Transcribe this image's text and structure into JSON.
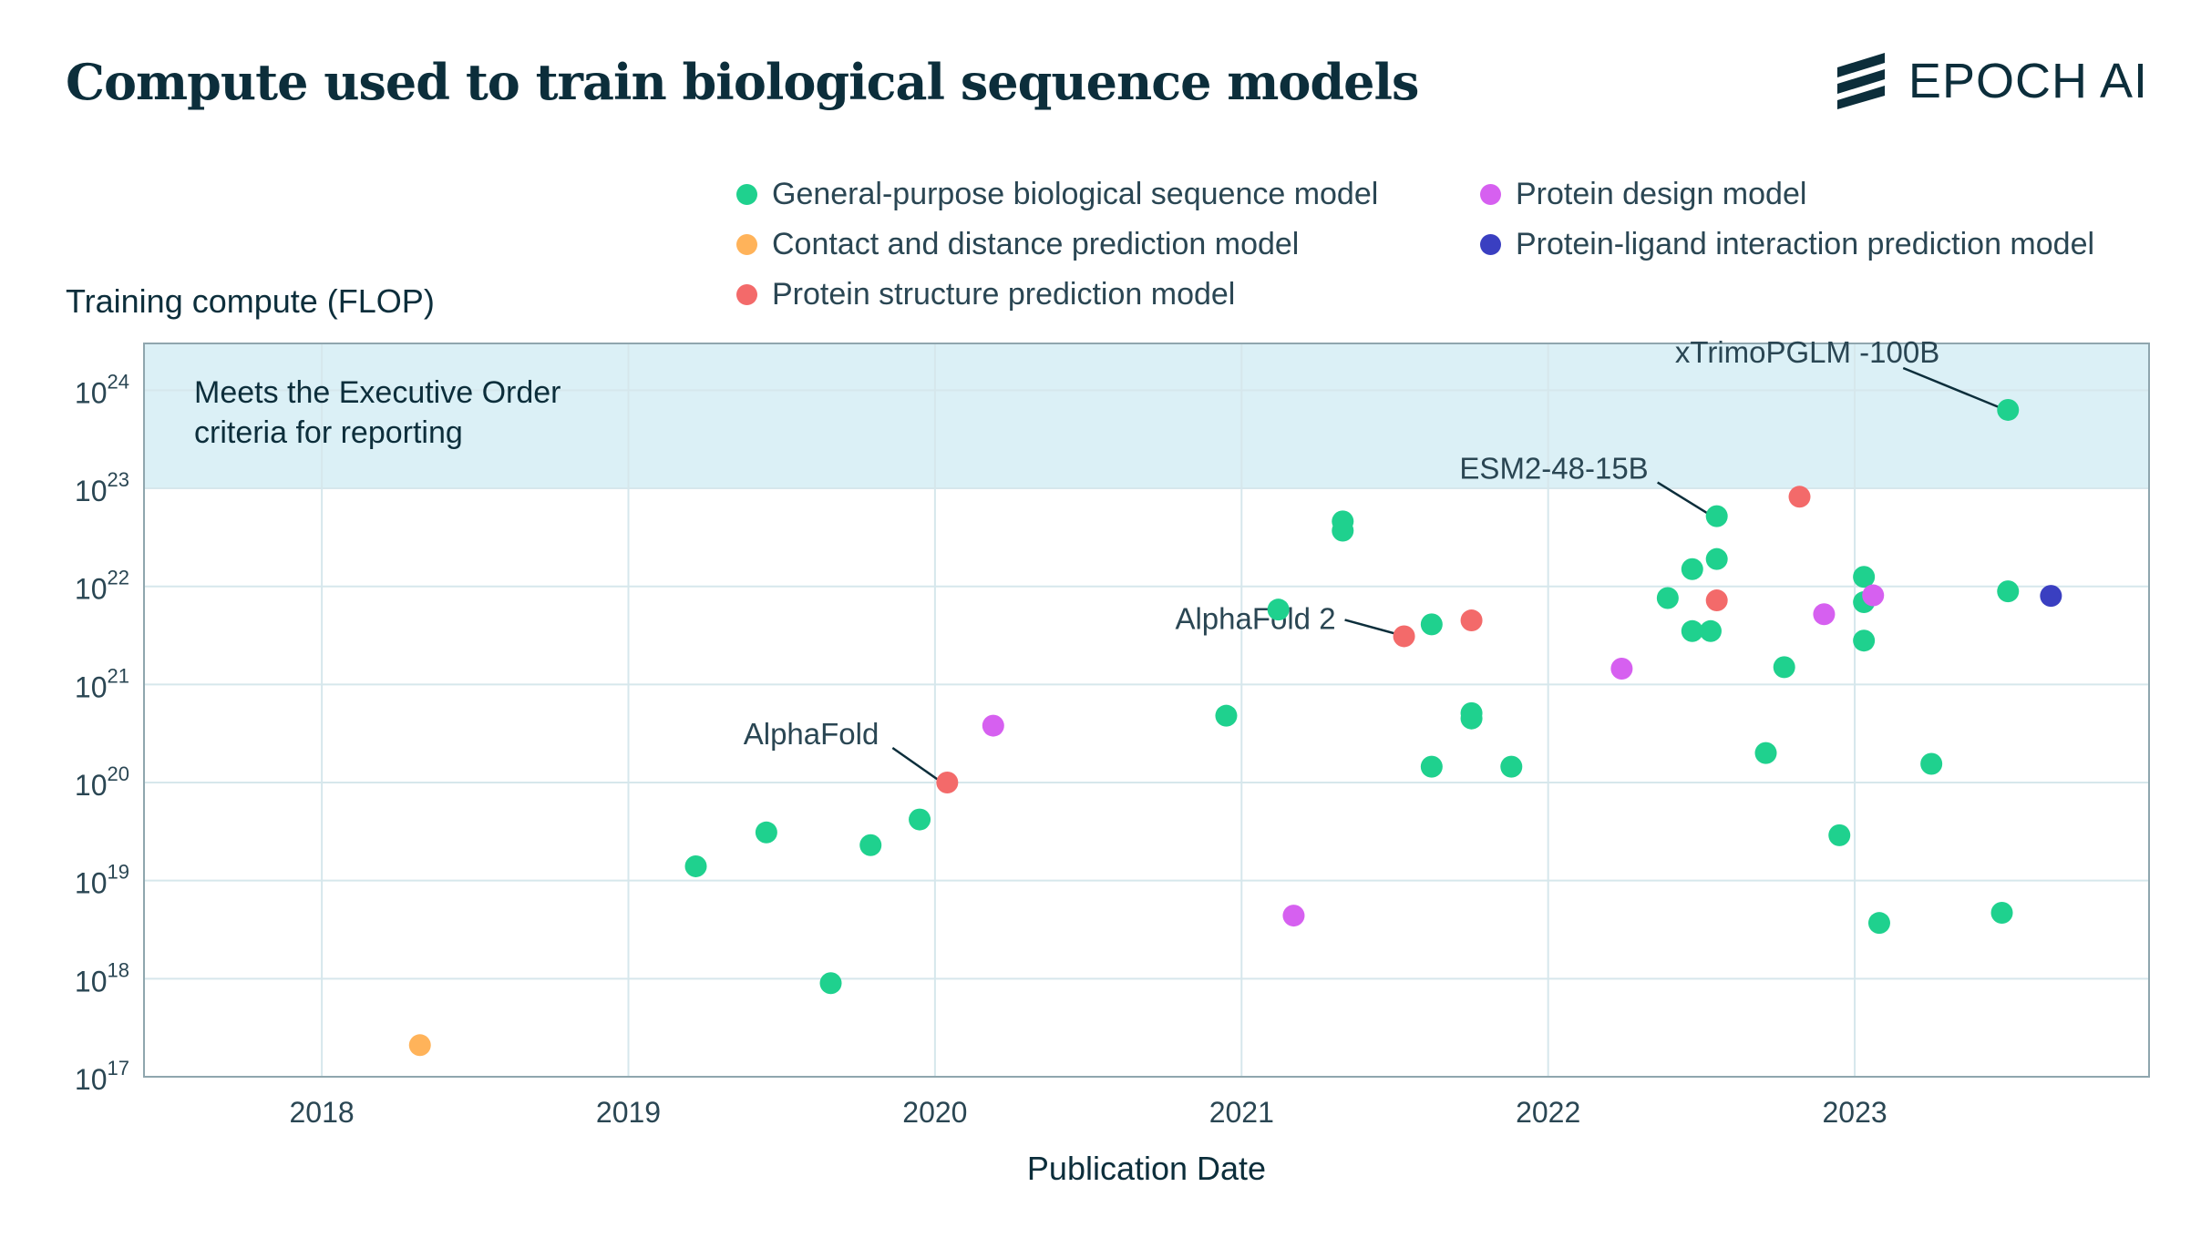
{
  "title": "Compute used to train biological sequence models",
  "brand": {
    "name": "EPOCH AI",
    "logo_icon": "epoch-stripes-icon"
  },
  "chart_data": {
    "type": "scatter",
    "xlabel": "Publication Date",
    "ylabel": "Training compute (FLOP)",
    "y_scale": "log",
    "xlim": [
      2017.42,
      2023.96
    ],
    "ylim": [
      1e+17,
      3e+24
    ],
    "x_ticks": [
      2018,
      2019,
      2020,
      2021,
      2022,
      2023
    ],
    "y_ticks": [
      {
        "value": 1e+17,
        "base": "10",
        "exp": "17"
      },
      {
        "value": 1e+18,
        "base": "10",
        "exp": "18"
      },
      {
        "value": 1e+19,
        "base": "10",
        "exp": "19"
      },
      {
        "value": 1e+20,
        "base": "10",
        "exp": "20"
      },
      {
        "value": 1e+21,
        "base": "10",
        "exp": "21"
      },
      {
        "value": 1e+22,
        "base": "10",
        "exp": "22"
      },
      {
        "value": 1e+23,
        "base": "10",
        "exp": "23"
      },
      {
        "value": 1e+24,
        "base": "10",
        "exp": "24"
      }
    ],
    "grid": true,
    "legend_position": "top",
    "threshold": {
      "value": 1e+23,
      "label_lines": [
        "Meets the Executive Order",
        "criteria for reporting"
      ],
      "color": "#dbf0f6"
    },
    "series": [
      {
        "name": "General-purpose biological sequence model",
        "color": "#1fd18e",
        "points": [
          {
            "x": 2019.22,
            "y": 1.4e+19
          },
          {
            "x": 2019.45,
            "y": 3.1e+19
          },
          {
            "x": 2019.66,
            "y": 9e+17
          },
          {
            "x": 2019.79,
            "y": 2.3e+19
          },
          {
            "x": 2019.95,
            "y": 4.2e+19
          },
          {
            "x": 2020.95,
            "y": 4.8e+20
          },
          {
            "x": 2021.12,
            "y": 5.8e+21
          },
          {
            "x": 2021.33,
            "y": 4.6e+22
          },
          {
            "x": 2021.33,
            "y": 3.7e+22
          },
          {
            "x": 2021.62,
            "y": 4.1e+21
          },
          {
            "x": 2021.62,
            "y": 1.45e+20
          },
          {
            "x": 2021.75,
            "y": 5.1e+20
          },
          {
            "x": 2021.75,
            "y": 4.5e+20
          },
          {
            "x": 2021.88,
            "y": 1.45e+20
          },
          {
            "x": 2022.39,
            "y": 7.6e+21
          },
          {
            "x": 2022.47,
            "y": 1.5e+22
          },
          {
            "x": 2022.47,
            "y": 3.5e+21
          },
          {
            "x": 2022.53,
            "y": 3.5e+21
          },
          {
            "x": 2022.55,
            "y": 1.9e+22
          },
          {
            "x": 2022.55,
            "y": 5.2e+22
          },
          {
            "x": 2022.71,
            "y": 2e+20
          },
          {
            "x": 2022.77,
            "y": 1.5e+21
          },
          {
            "x": 2022.95,
            "y": 2.9e+19
          },
          {
            "x": 2023.03,
            "y": 1.25e+22
          },
          {
            "x": 2023.03,
            "y": 6.9e+21
          },
          {
            "x": 2023.03,
            "y": 2.8e+21
          },
          {
            "x": 2023.08,
            "y": 3.7e+18
          },
          {
            "x": 2023.25,
            "y": 1.55e+20
          },
          {
            "x": 2023.48,
            "y": 4.7e+18
          },
          {
            "x": 2023.5,
            "y": 8.9e+21
          },
          {
            "x": 2023.5,
            "y": 6.3e+23
          }
        ]
      },
      {
        "name": "Contact and distance prediction model",
        "color": "#ffb35a",
        "points": [
          {
            "x": 2018.32,
            "y": 2.1e+17
          }
        ]
      },
      {
        "name": "Protein structure prediction model",
        "color": "#f36a6a",
        "points": [
          {
            "x": 2020.04,
            "y": 1e+20
          },
          {
            "x": 2021.53,
            "y": 3.1e+21
          },
          {
            "x": 2021.75,
            "y": 4.5e+21
          },
          {
            "x": 2022.55,
            "y": 7.2e+21
          },
          {
            "x": 2022.82,
            "y": 8.2e+22
          }
        ]
      },
      {
        "name": "Protein design model",
        "color": "#d660f0",
        "points": [
          {
            "x": 2020.19,
            "y": 3.8e+20
          },
          {
            "x": 2021.17,
            "y": 4.4e+18
          },
          {
            "x": 2022.24,
            "y": 1.45e+21
          },
          {
            "x": 2022.9,
            "y": 5.2e+21
          },
          {
            "x": 2023.06,
            "y": 8.1e+21
          }
        ]
      },
      {
        "name": "Protein-ligand interaction prediction model",
        "color": "#3a3fc1",
        "points": [
          {
            "x": 2023.64,
            "y": 8e+21
          }
        ]
      }
    ],
    "annotations": [
      {
        "text": "AlphaFold",
        "x": 2020.04,
        "y": 1e+20
      },
      {
        "text": "AlphaFold 2",
        "x": 2021.53,
        "y": 3.1e+21
      },
      {
        "text": "ESM2-48-15B",
        "x": 2022.55,
        "y": 5.2e+22
      },
      {
        "text": "xTrimoPGLM -100B",
        "x": 2023.5,
        "y": 6.3e+23
      }
    ]
  }
}
